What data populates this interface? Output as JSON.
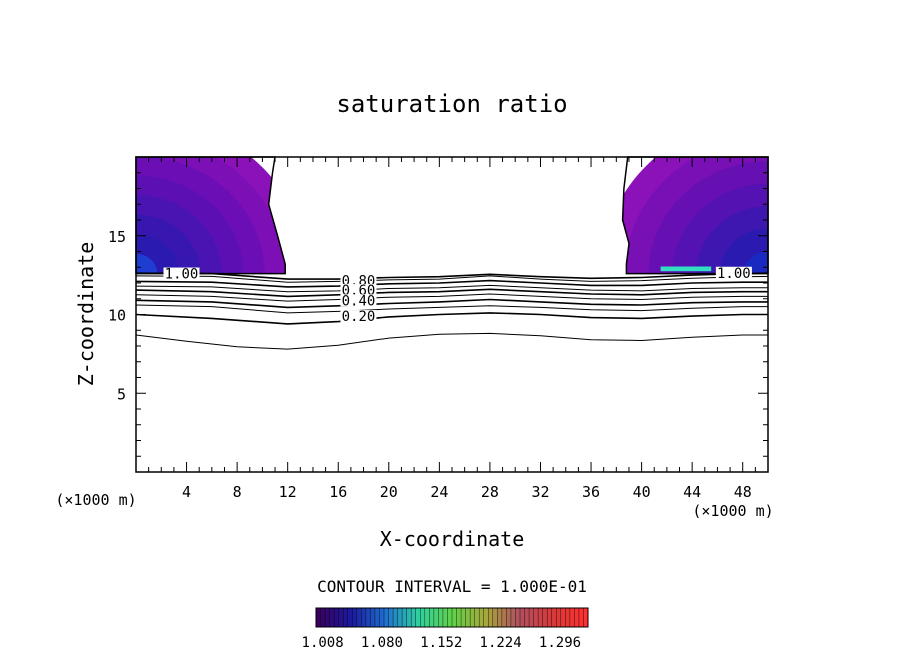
{
  "chart_data": {
    "type": "contour",
    "title": "saturation ratio",
    "xlabel": "X-coordinate",
    "ylabel": "Z-coordinate",
    "x_unit_label": "(×1000 m)",
    "z_unit_label": "(×1000 m)",
    "xlim": [
      0,
      50
    ],
    "ylim": [
      0,
      20
    ],
    "x_ticks": [
      4,
      8,
      12,
      16,
      20,
      24,
      28,
      32,
      36,
      40,
      44,
      48
    ],
    "y_ticks": [
      5,
      10,
      15
    ],
    "contour_interval_label": "CONTOUR INTERVAL = 1.000E-01",
    "colorbar_ticks": [
      "1.008",
      "1.080",
      "1.152",
      "1.224",
      "1.296"
    ],
    "colorbar_range": [
      1.0,
      1.33
    ],
    "colorbar_colors": [
      "#3a0060",
      "#1a1aa0",
      "#1f6fd0",
      "#2fd0a0",
      "#5fd24a",
      "#a8a83a",
      "#b05060",
      "#d83a3a",
      "#ff3030"
    ],
    "supersaturated_regions": [
      {
        "name": "left",
        "boundary": [
          [
            0,
            12.6
          ],
          [
            11.8,
            12.6
          ],
          [
            11.8,
            13.2
          ],
          [
            11.2,
            15.0
          ],
          [
            10.5,
            17.0
          ],
          [
            10.8,
            19.0
          ],
          [
            11.0,
            20.0
          ],
          [
            0,
            20.0
          ]
        ],
        "fill_colors": [
          "#8a12b8",
          "#7c10b6",
          "#6c0eb6",
          "#5c10b4",
          "#4a14b2",
          "#3816b0",
          "#2a1ab0",
          "#1f3dd0"
        ]
      },
      {
        "name": "right",
        "boundary": [
          [
            38.8,
            12.6
          ],
          [
            50,
            12.6
          ],
          [
            50,
            20.0
          ],
          [
            38.9,
            20.0
          ],
          [
            38.6,
            18.0
          ],
          [
            38.5,
            16.0
          ],
          [
            39.0,
            14.5
          ],
          [
            38.8,
            13.2
          ]
        ],
        "fill_colors": [
          "#8a12b8",
          "#7810b6",
          "#6610b4",
          "#5412b2",
          "#3e16b0",
          "#2a1ab0",
          "#1a2ac0"
        ],
        "highlight": {
          "x": [
            41.5,
            45.5
          ],
          "z": [
            12.75,
            13.05
          ],
          "color": "#30e0c0"
        }
      }
    ],
    "contour_lines": [
      {
        "level": 1.0,
        "label": "1.00",
        "x": [
          0,
          6,
          12,
          16,
          20,
          24,
          28,
          32,
          36,
          40,
          44,
          48,
          50
        ],
        "z": [
          12.62,
          12.6,
          12.25,
          12.25,
          12.35,
          12.4,
          12.55,
          12.4,
          12.3,
          12.35,
          12.5,
          12.6,
          12.62
        ]
      },
      {
        "level": 0.9,
        "label": "",
        "x": [
          0,
          6,
          12,
          16,
          20,
          24,
          28,
          32,
          36,
          40,
          44,
          48,
          50
        ],
        "z": [
          12.45,
          12.42,
          12.05,
          12.1,
          12.2,
          12.25,
          12.45,
          12.25,
          12.1,
          12.15,
          12.3,
          12.4,
          12.42
        ]
      },
      {
        "level": 0.8,
        "label": "0.80",
        "x": [
          0,
          6,
          12,
          16,
          20,
          24,
          28,
          32,
          36,
          40,
          44,
          48,
          50
        ],
        "z": [
          12.1,
          12.05,
          11.75,
          11.8,
          11.95,
          12.0,
          12.15,
          12.0,
          11.85,
          11.85,
          12.0,
          12.05,
          12.05
        ]
      },
      {
        "level": 0.7,
        "label": "",
        "x": [
          0,
          6,
          12,
          16,
          20,
          24,
          28,
          32,
          36,
          40,
          44,
          48,
          50
        ],
        "z": [
          11.8,
          11.75,
          11.45,
          11.5,
          11.65,
          11.7,
          11.85,
          11.7,
          11.55,
          11.5,
          11.65,
          11.7,
          11.7
        ]
      },
      {
        "level": 0.6,
        "label": "0.60",
        "x": [
          0,
          6,
          12,
          16,
          20,
          24,
          28,
          32,
          36,
          40,
          44,
          48,
          50
        ],
        "z": [
          11.55,
          11.45,
          11.15,
          11.25,
          11.4,
          11.45,
          11.6,
          11.45,
          11.3,
          11.25,
          11.4,
          11.45,
          11.45
        ]
      },
      {
        "level": 0.5,
        "label": "",
        "x": [
          0,
          6,
          12,
          16,
          20,
          24,
          28,
          32,
          36,
          40,
          44,
          48,
          50
        ],
        "z": [
          11.25,
          11.15,
          10.85,
          10.95,
          11.1,
          11.15,
          11.3,
          11.15,
          11.0,
          10.95,
          11.1,
          11.15,
          11.15
        ]
      },
      {
        "level": 0.4,
        "label": "0.40",
        "x": [
          0,
          6,
          12,
          16,
          20,
          24,
          28,
          32,
          36,
          40,
          44,
          48,
          50
        ],
        "z": [
          10.9,
          10.8,
          10.45,
          10.55,
          10.7,
          10.8,
          10.95,
          10.8,
          10.65,
          10.6,
          10.75,
          10.8,
          10.8
        ]
      },
      {
        "level": 0.3,
        "label": "",
        "x": [
          0,
          6,
          12,
          16,
          20,
          24,
          28,
          32,
          36,
          40,
          44,
          48,
          50
        ],
        "z": [
          10.6,
          10.5,
          10.1,
          10.2,
          10.35,
          10.45,
          10.55,
          10.45,
          10.3,
          10.25,
          10.4,
          10.5,
          10.5
        ]
      },
      {
        "level": 0.2,
        "label": "0.20",
        "x": [
          0,
          6,
          12,
          16,
          20,
          24,
          28,
          32,
          36,
          40,
          44,
          48,
          50
        ],
        "z": [
          10.0,
          9.75,
          9.4,
          9.55,
          9.85,
          10.0,
          10.1,
          10.0,
          9.8,
          9.75,
          9.9,
          10.0,
          10.0
        ]
      },
      {
        "level": 0.1,
        "label": "",
        "x": [
          0,
          4,
          8,
          12,
          16,
          20,
          24,
          28,
          32,
          36,
          40,
          44,
          48,
          50
        ],
        "z": [
          8.7,
          8.3,
          7.95,
          7.8,
          8.05,
          8.5,
          8.75,
          8.8,
          8.65,
          8.4,
          8.35,
          8.55,
          8.7,
          8.7
        ]
      }
    ],
    "contour_labels": [
      {
        "text": "1.00",
        "x": 3.6,
        "z": 12.6
      },
      {
        "text": "1.00",
        "x": 47.3,
        "z": 12.65
      },
      {
        "text": "0.80",
        "x": 17.6,
        "z": 12.15
      },
      {
        "text": "0.60",
        "x": 17.6,
        "z": 11.55
      },
      {
        "text": "0.40",
        "x": 17.6,
        "z": 10.9
      },
      {
        "text": "0.20",
        "x": 17.6,
        "z": 9.9
      }
    ]
  }
}
